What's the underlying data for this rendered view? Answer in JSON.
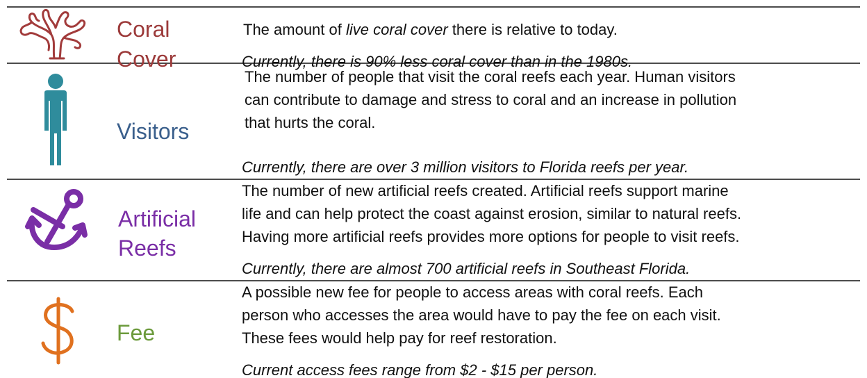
{
  "rows": [
    {
      "label": [
        "Coral",
        "Cover"
      ],
      "description": [
        [
          {
            "text": "The amount of "
          },
          {
            "text": "live coral cover",
            "italic": true
          },
          {
            "text": " there is relative to today."
          }
        ]
      ],
      "note": "Currently, there is 90% less coral cover than in the 1980s."
    },
    {
      "label": [
        "Visitors"
      ],
      "description": [
        [
          {
            "text": "The number of people that visit the coral reefs each year. Human visitors"
          }
        ],
        [
          {
            "text": "can contribute to damage and stress to coral and an increase in pollution"
          }
        ],
        [
          {
            "text": "that hurts the coral."
          }
        ]
      ],
      "note": "Currently, there are over 3 million visitors to Florida reefs per year."
    },
    {
      "label": [
        "Artificial",
        "Reefs"
      ],
      "description": [
        [
          {
            "text": "The number of new artificial reefs created. Artificial reefs support marine"
          }
        ],
        [
          {
            "text": "life and can help protect the coast against erosion, similar to natural reefs."
          }
        ],
        [
          {
            "text": "Having more artificial reefs provides more options for people to visit reefs."
          }
        ]
      ],
      "note": "Currently, there are almost 700 artificial reefs in Southeast Florida."
    },
    {
      "label": [
        "Fee"
      ],
      "description": [
        [
          {
            "text": "A possible new fee for people to access areas with coral reefs. Each"
          }
        ],
        [
          {
            "text": "person who accesses the area would have to pay the fee on each visit."
          }
        ],
        [
          {
            "text": "These fees would help pay for reef restoration."
          }
        ]
      ],
      "note": "Current access fees range from $2 - $15 per person."
    }
  ]
}
